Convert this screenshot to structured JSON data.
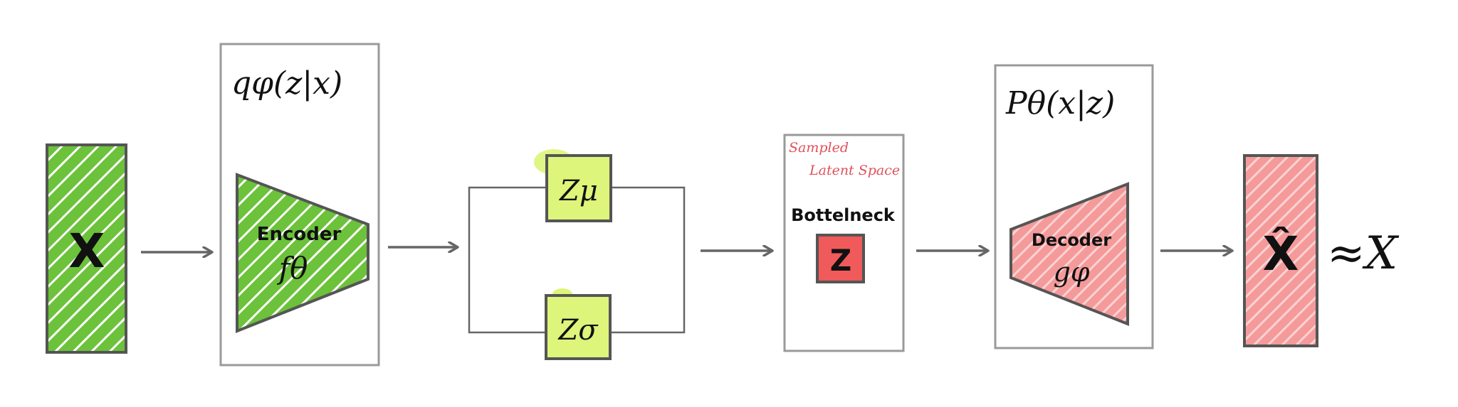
{
  "diagram": {
    "input": {
      "label": "X"
    },
    "encoder": {
      "dist_label": "qφ(z|x)",
      "name": "Encoder",
      "func": "fθ"
    },
    "latent": {
      "mu_label": "Zμ",
      "sigma_label": "Zσ"
    },
    "bottleneck": {
      "note_line1": "Sampled",
      "note_line2": "Latent Space",
      "title": "Bottelneck",
      "z_label": "Z"
    },
    "decoder": {
      "dist_label": "Pθ(x|z)",
      "name": "Decoder",
      "func": "gφ"
    },
    "output": {
      "label": "X̂",
      "approx": "≈X"
    }
  },
  "colors": {
    "green_fill": "#6cc23a",
    "latent_fill": "#dcf57a",
    "red_fill": "#f05a5a",
    "pink_fill": "#f49a9a",
    "box_stroke": "#9a9a9a",
    "dark_stroke": "#555555",
    "arrow": "#666666"
  }
}
